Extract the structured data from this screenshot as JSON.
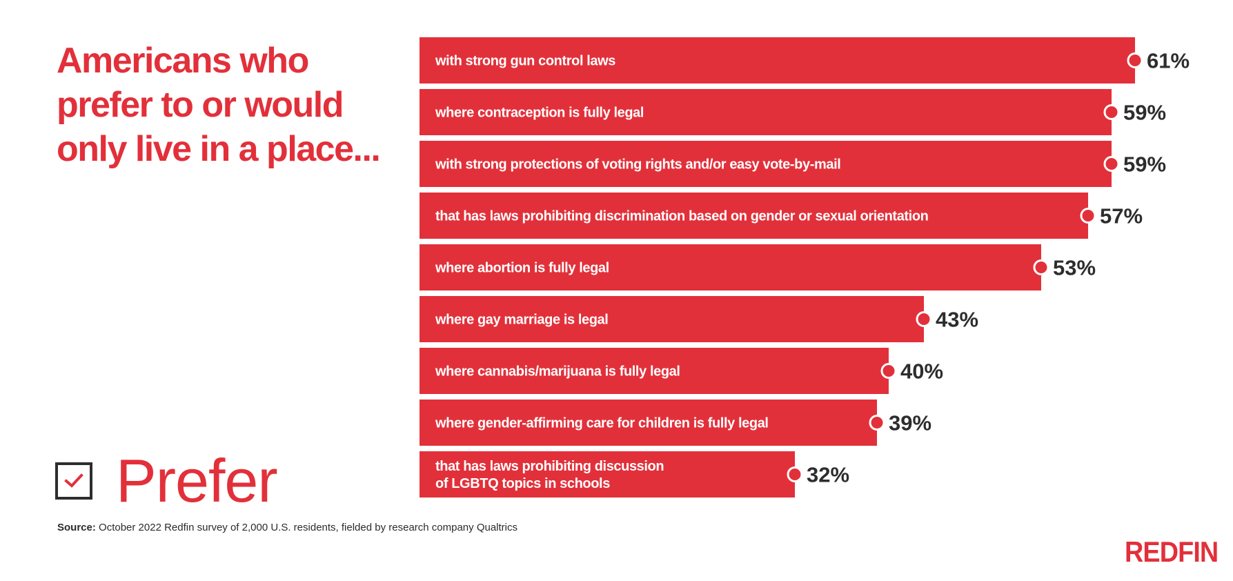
{
  "title": "Americans who prefer to or would only live in a place...",
  "legend": {
    "label": "Prefer",
    "icon": "checkbox-checked-icon"
  },
  "source": {
    "label": "Source:",
    "text": " October 2022 Redfin survey of 2,000 U.S. residents, fielded by research company Qualtrics"
  },
  "logo": {
    "text": "REDFIN"
  },
  "colors": {
    "accent": "#e2303a",
    "text_dark": "#2d2d2d",
    "bar_text": "#ffffff",
    "background": "#ffffff"
  },
  "chart_data": {
    "type": "bar",
    "orientation": "horizontal",
    "title": "Americans who prefer to or would only live in a place...",
    "xlabel": "",
    "ylabel": "",
    "xlim": [
      0,
      61
    ],
    "grid": false,
    "value_suffix": "%",
    "series": [
      {
        "name": "Prefer",
        "categories": [
          [
            "with strong gun control laws"
          ],
          [
            "where contraception is fully legal"
          ],
          [
            "with strong protections of voting rights and/or easy vote-by-mail"
          ],
          [
            "that has laws prohibiting discrimination based on gender or sexual orientation"
          ],
          [
            "where abortion is fully legal"
          ],
          [
            "where gay marriage is legal"
          ],
          [
            "where cannabis/marijuana is fully legal"
          ],
          [
            "where gender-affirming care for children is fully legal"
          ],
          [
            "that has laws prohibiting discussion",
            "of LGBTQ topics in schools"
          ]
        ],
        "values": [
          61,
          59,
          59,
          57,
          53,
          43,
          40,
          39,
          32
        ],
        "value_labels": [
          "61%",
          "59%",
          "59%",
          "57%",
          "53%",
          "43%",
          "40%",
          "39%",
          "32%"
        ]
      }
    ]
  }
}
